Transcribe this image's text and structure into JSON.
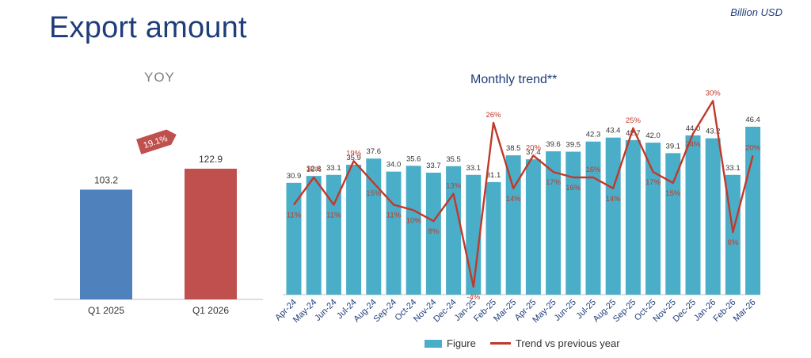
{
  "header": {
    "title": "Export amount",
    "unit": "Billion USD"
  },
  "chart_data": [
    {
      "type": "bar",
      "title": "YOY",
      "categories": [
        "Q1 2025",
        "Q1 2026"
      ],
      "values": [
        103.2,
        122.9
      ],
      "value_labels": [
        "103.2",
        "122.9"
      ],
      "colors": [
        "#4f81bd",
        "#c0504d"
      ],
      "growth_badge": "19.1%",
      "ylim": [
        0,
        140
      ]
    },
    {
      "type": "bar",
      "title": "Monthly trend**",
      "categories": [
        "Apr-24",
        "May-24",
        "Jun-24",
        "Jul-24",
        "Aug-24",
        "Sep-24",
        "Oct-24",
        "Nov-24",
        "Dec-24",
        "Jan-25",
        "Feb-25",
        "Mar-25",
        "Apr-25",
        "May-25",
        "Jun-25",
        "Jul-25",
        "Aug-25",
        "Sep-25",
        "Oct-25",
        "Nov-25",
        "Dec-25",
        "Jan-26",
        "Feb-26",
        "Mar-26"
      ],
      "series": [
        {
          "name": "Figure",
          "type": "bar",
          "color": "#4aaec8",
          "values": [
            30.9,
            32.8,
            33.1,
            35.9,
            37.6,
            34.0,
            35.6,
            33.7,
            35.5,
            33.1,
            31.1,
            38.5,
            37.4,
            39.6,
            39.5,
            42.3,
            43.4,
            42.7,
            42.0,
            39.1,
            44.0,
            43.2,
            33.1,
            46.4
          ],
          "labels": [
            "30.9",
            "32.8",
            "33.1",
            "35.9",
            "37.6",
            "34.0",
            "35.6",
            "33.7",
            "35.5",
            "33.1",
            "31.1",
            "38.5",
            "37.4",
            "39.6",
            "39.5",
            "42.3",
            "43.4",
            "42.7",
            "42.0",
            "39.1",
            "44.0",
            "43.2",
            "33.1",
            "46.4"
          ]
        },
        {
          "name": "Trend vs previous year",
          "type": "line",
          "color": "#c0392b",
          "values": [
            11,
            16,
            11,
            19,
            15,
            11,
            10,
            8,
            13,
            -4,
            26,
            14,
            20,
            17,
            16,
            16,
            14,
            25,
            17,
            15,
            24,
            30,
            6,
            20
          ],
          "labels": [
            "11%",
            "16%",
            "11%",
            "19%",
            "15%",
            "11%",
            "10%",
            "8%",
            "13%",
            "-4%",
            "26%",
            "14%",
            "20%",
            "17%",
            "16%",
            "16%",
            "14%",
            "25%",
            "17%",
            "15%",
            "24%",
            "30%",
            "6%",
            "20%"
          ]
        }
      ],
      "ylim_bars": [
        0,
        50
      ],
      "ylim_line": [
        -8,
        32
      ],
      "legend_position": "bottom"
    }
  ]
}
